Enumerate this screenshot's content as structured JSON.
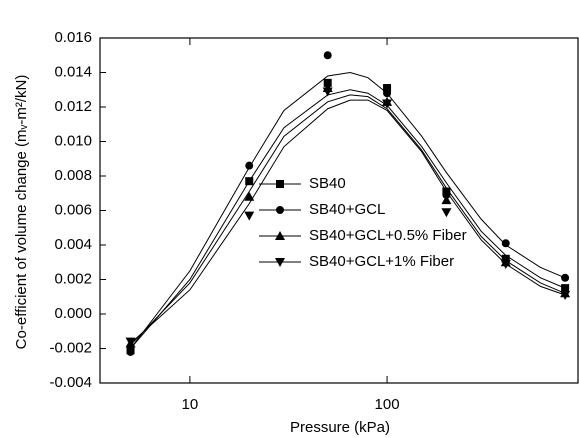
{
  "chart_data": {
    "type": "scatter",
    "x_label": "Pressure (kPa)",
    "y_label": "Co-efficient of volume change (mᵥ-m²/kN)",
    "x_scale": "log",
    "xlim": [
      3.5,
      930
    ],
    "xticks": [
      10,
      100
    ],
    "ylim": [
      -0.004,
      0.016
    ],
    "yticks": [
      -0.004,
      -0.002,
      {
        "value": 0,
        "label": "0.000"
      },
      0.002,
      0.004,
      0.006,
      0.008,
      {
        "value": 0.01,
        "label": "0.010"
      },
      0.012,
      0.014,
      0.016
    ],
    "legend": "lower center",
    "fit_x": [
      5,
      10,
      20,
      30,
      50,
      65,
      80,
      100,
      150,
      200,
      300,
      400,
      600,
      800
    ],
    "series": [
      {
        "name": "SB40",
        "marker": "square",
        "color": "#000000",
        "x": [
          5,
          20,
          50,
          100,
          200,
          400,
          800
        ],
        "values": [
          -0.0021,
          0.0077,
          0.0134,
          0.0131,
          0.0071,
          0.0032,
          0.0015
        ],
        "fit_values": [
          -0.002,
          0.002,
          0.0077,
          0.0108,
          0.0127,
          0.013,
          0.0128,
          0.0121,
          0.0097,
          0.0076,
          0.0048,
          0.0034,
          0.0021,
          0.0015
        ]
      },
      {
        "name": "SB40+GCL",
        "marker": "circle",
        "color": "#000000",
        "x": [
          5,
          20,
          50,
          100,
          200,
          400,
          800
        ],
        "values": [
          -0.0022,
          0.0086,
          0.015,
          0.0128,
          0.0069,
          0.0041,
          0.0021
        ],
        "fit_values": [
          -0.002,
          0.0025,
          0.0085,
          0.0118,
          0.0138,
          0.014,
          0.0137,
          0.0128,
          0.0103,
          0.0082,
          0.0055,
          0.004,
          0.0027,
          0.0021
        ]
      },
      {
        "name": "SB40+GCL+0.5% Fiber",
        "marker": "triangle-up",
        "color": "#000000",
        "x": [
          5,
          20,
          50,
          100,
          200,
          400,
          800
        ],
        "values": [
          -0.0017,
          0.0068,
          0.0131,
          0.0123,
          0.0066,
          0.003,
          0.0012
        ],
        "fit_values": [
          -0.0018,
          0.0018,
          0.0071,
          0.0103,
          0.0123,
          0.0127,
          0.0126,
          0.0119,
          0.0095,
          0.0073,
          0.0045,
          0.0031,
          0.0018,
          0.0012
        ]
      },
      {
        "name": "SB40+GCL+1% Fiber",
        "marker": "triangle-down",
        "color": "#000000",
        "x": [
          5,
          20,
          50,
          100,
          200,
          400,
          800
        ],
        "values": [
          -0.0016,
          0.0057,
          0.0129,
          0.0122,
          0.0059,
          0.0029,
          0.0011
        ],
        "fit_values": [
          -0.0017,
          0.0014,
          0.0064,
          0.0097,
          0.0119,
          0.0124,
          0.0124,
          0.0118,
          0.0094,
          0.0071,
          0.0043,
          0.0029,
          0.0016,
          0.0011
        ]
      }
    ]
  }
}
